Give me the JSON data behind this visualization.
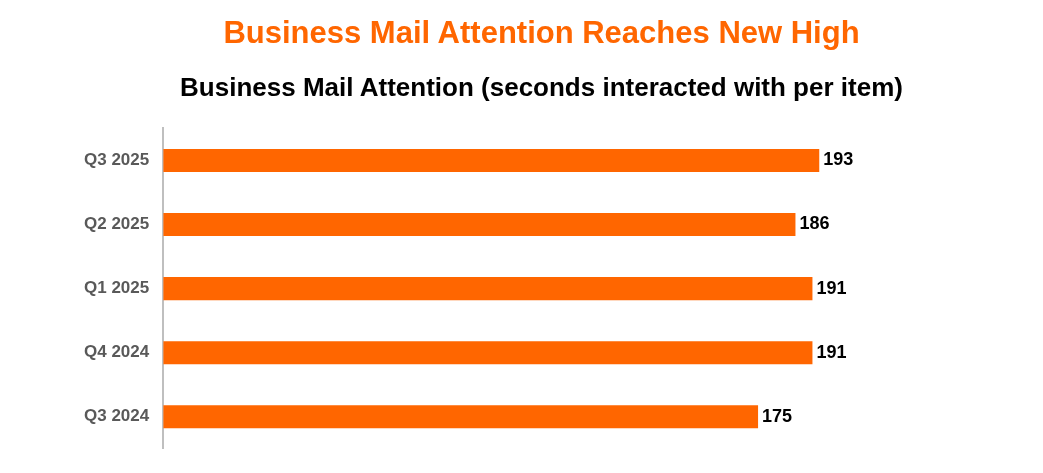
{
  "chart_data": {
    "type": "bar",
    "orientation": "horizontal",
    "title": "Business Mail Attention Reaches New High",
    "subtitle": "Business Mail Attention (seconds interacted with per item)",
    "categories": [
      "Q3 2025",
      "Q2 2025",
      "Q1 2025",
      "Q4 2024",
      "Q3 2024"
    ],
    "values": [
      193,
      186,
      191,
      191,
      175
    ],
    "color": "#ff6600",
    "data_labels": true
  }
}
